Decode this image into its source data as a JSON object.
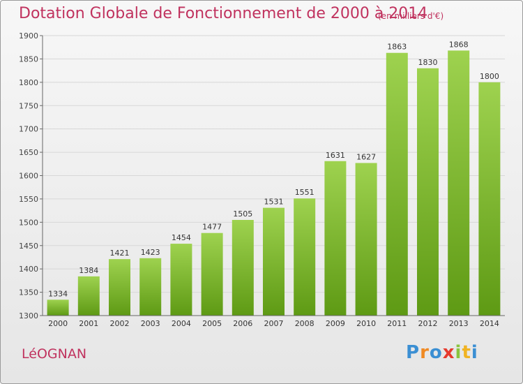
{
  "header": {
    "title": "Dotation Globale de Fonctionnement de 2000 à 2014",
    "unit": "(en milliers d'€)"
  },
  "footer": {
    "commune": "LéOGNAN",
    "logo_letters": [
      "P",
      "r",
      "o",
      "x",
      "i",
      "t",
      "i"
    ],
    "logo_colors": [
      "#3b8fd3",
      "#f08a24",
      "#3b8fd3",
      "#e63a2e",
      "#8ac43f",
      "#f0b323",
      "#3b8fd3"
    ]
  },
  "colors": {
    "title": "#c0325e",
    "bar_top": "#9ed24f",
    "bar_bottom": "#5e9a14",
    "axis": "#666666",
    "grid": "#d7d7d7"
  },
  "chart_data": {
    "type": "bar",
    "categories": [
      "2000",
      "2001",
      "2002",
      "2003",
      "2004",
      "2005",
      "2006",
      "2007",
      "2008",
      "2009",
      "2010",
      "2011",
      "2012",
      "2013",
      "2014"
    ],
    "values": [
      1334,
      1384,
      1421,
      1423,
      1454,
      1477,
      1505,
      1531,
      1551,
      1631,
      1627,
      1863,
      1830,
      1868,
      1800
    ],
    "ylim": [
      1300,
      1900
    ],
    "yticks": [
      1300,
      1350,
      1400,
      1450,
      1500,
      1550,
      1600,
      1650,
      1700,
      1750,
      1800,
      1850,
      1900
    ],
    "grid": true,
    "title": "Dotation Globale de Fonctionnement de 2000 à 2014"
  }
}
